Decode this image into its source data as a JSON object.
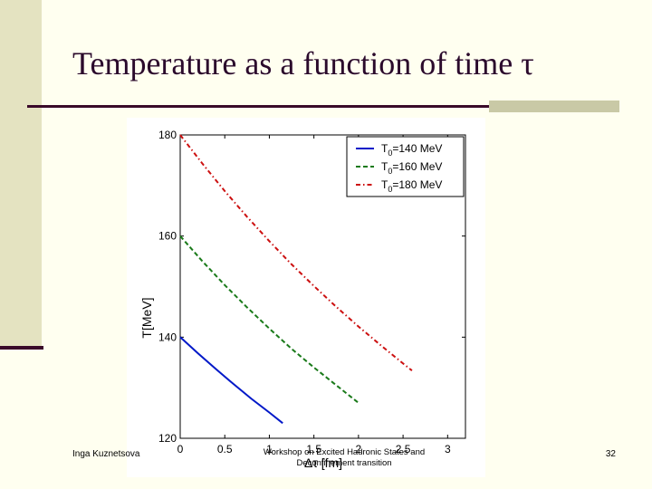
{
  "slide": {
    "title": "Temperature as a function of time τ",
    "footer_left": "Inga Kuznetsova",
    "footer_center": "Workshop on Excited Hadronic States and Deconfinement transition",
    "page_number": "32"
  },
  "colors": {
    "background": "#fffff0",
    "sidebar": "#e4e3c1",
    "accent_dark": "#3a0a2a",
    "accent_light": "#c9c9a6",
    "title_text": "#2b0a2c"
  },
  "chart_data": {
    "type": "line",
    "title": "",
    "xlabel": "Δτ [fm]",
    "ylabel": "T[MeV]",
    "xlim": [
      0,
      3.2
    ],
    "ylim": [
      120,
      180
    ],
    "xticks": [
      0,
      0.5,
      1,
      1.5,
      2,
      2.5,
      3
    ],
    "xtick_labels": [
      "0",
      "0.5",
      "1",
      "1.5",
      "2",
      "2.5",
      "3"
    ],
    "yticks": [
      120,
      140,
      160,
      180
    ],
    "ytick_labels": [
      "120",
      "140",
      "160",
      "180"
    ],
    "legend_position": "top-right",
    "series": [
      {
        "name_main": "T",
        "name_sub": "0",
        "name_rest": "=140 MeV",
        "color": "#0018c8",
        "dash": "solid",
        "x": [
          0,
          0.2,
          0.4,
          0.6,
          0.8,
          1.0,
          1.15
        ],
        "y": [
          140,
          136.8,
          133.7,
          130.7,
          127.8,
          125.1,
          123.0
        ]
      },
      {
        "name_main": "T",
        "name_sub": "0",
        "name_rest": "=160 MeV",
        "color": "#1a7a1a",
        "dash": "dashed",
        "x": [
          0,
          0.25,
          0.5,
          0.75,
          1.0,
          1.25,
          1.5,
          1.75,
          2.0
        ],
        "y": [
          160,
          155.0,
          150.3,
          145.9,
          141.7,
          137.7,
          134.0,
          130.5,
          127.0
        ]
      },
      {
        "name_main": "T",
        "name_sub": "0",
        "name_rest": "=180 MeV",
        "color": "#cc1010",
        "dash": "dashdot",
        "x": [
          0,
          0.25,
          0.5,
          0.75,
          1.0,
          1.25,
          1.5,
          1.75,
          2.0,
          2.25,
          2.5,
          2.6
        ],
        "y": [
          180,
          174.3,
          168.9,
          163.8,
          159.0,
          154.4,
          150.1,
          146.0,
          142.1,
          138.4,
          134.8,
          133.4
        ]
      }
    ]
  }
}
